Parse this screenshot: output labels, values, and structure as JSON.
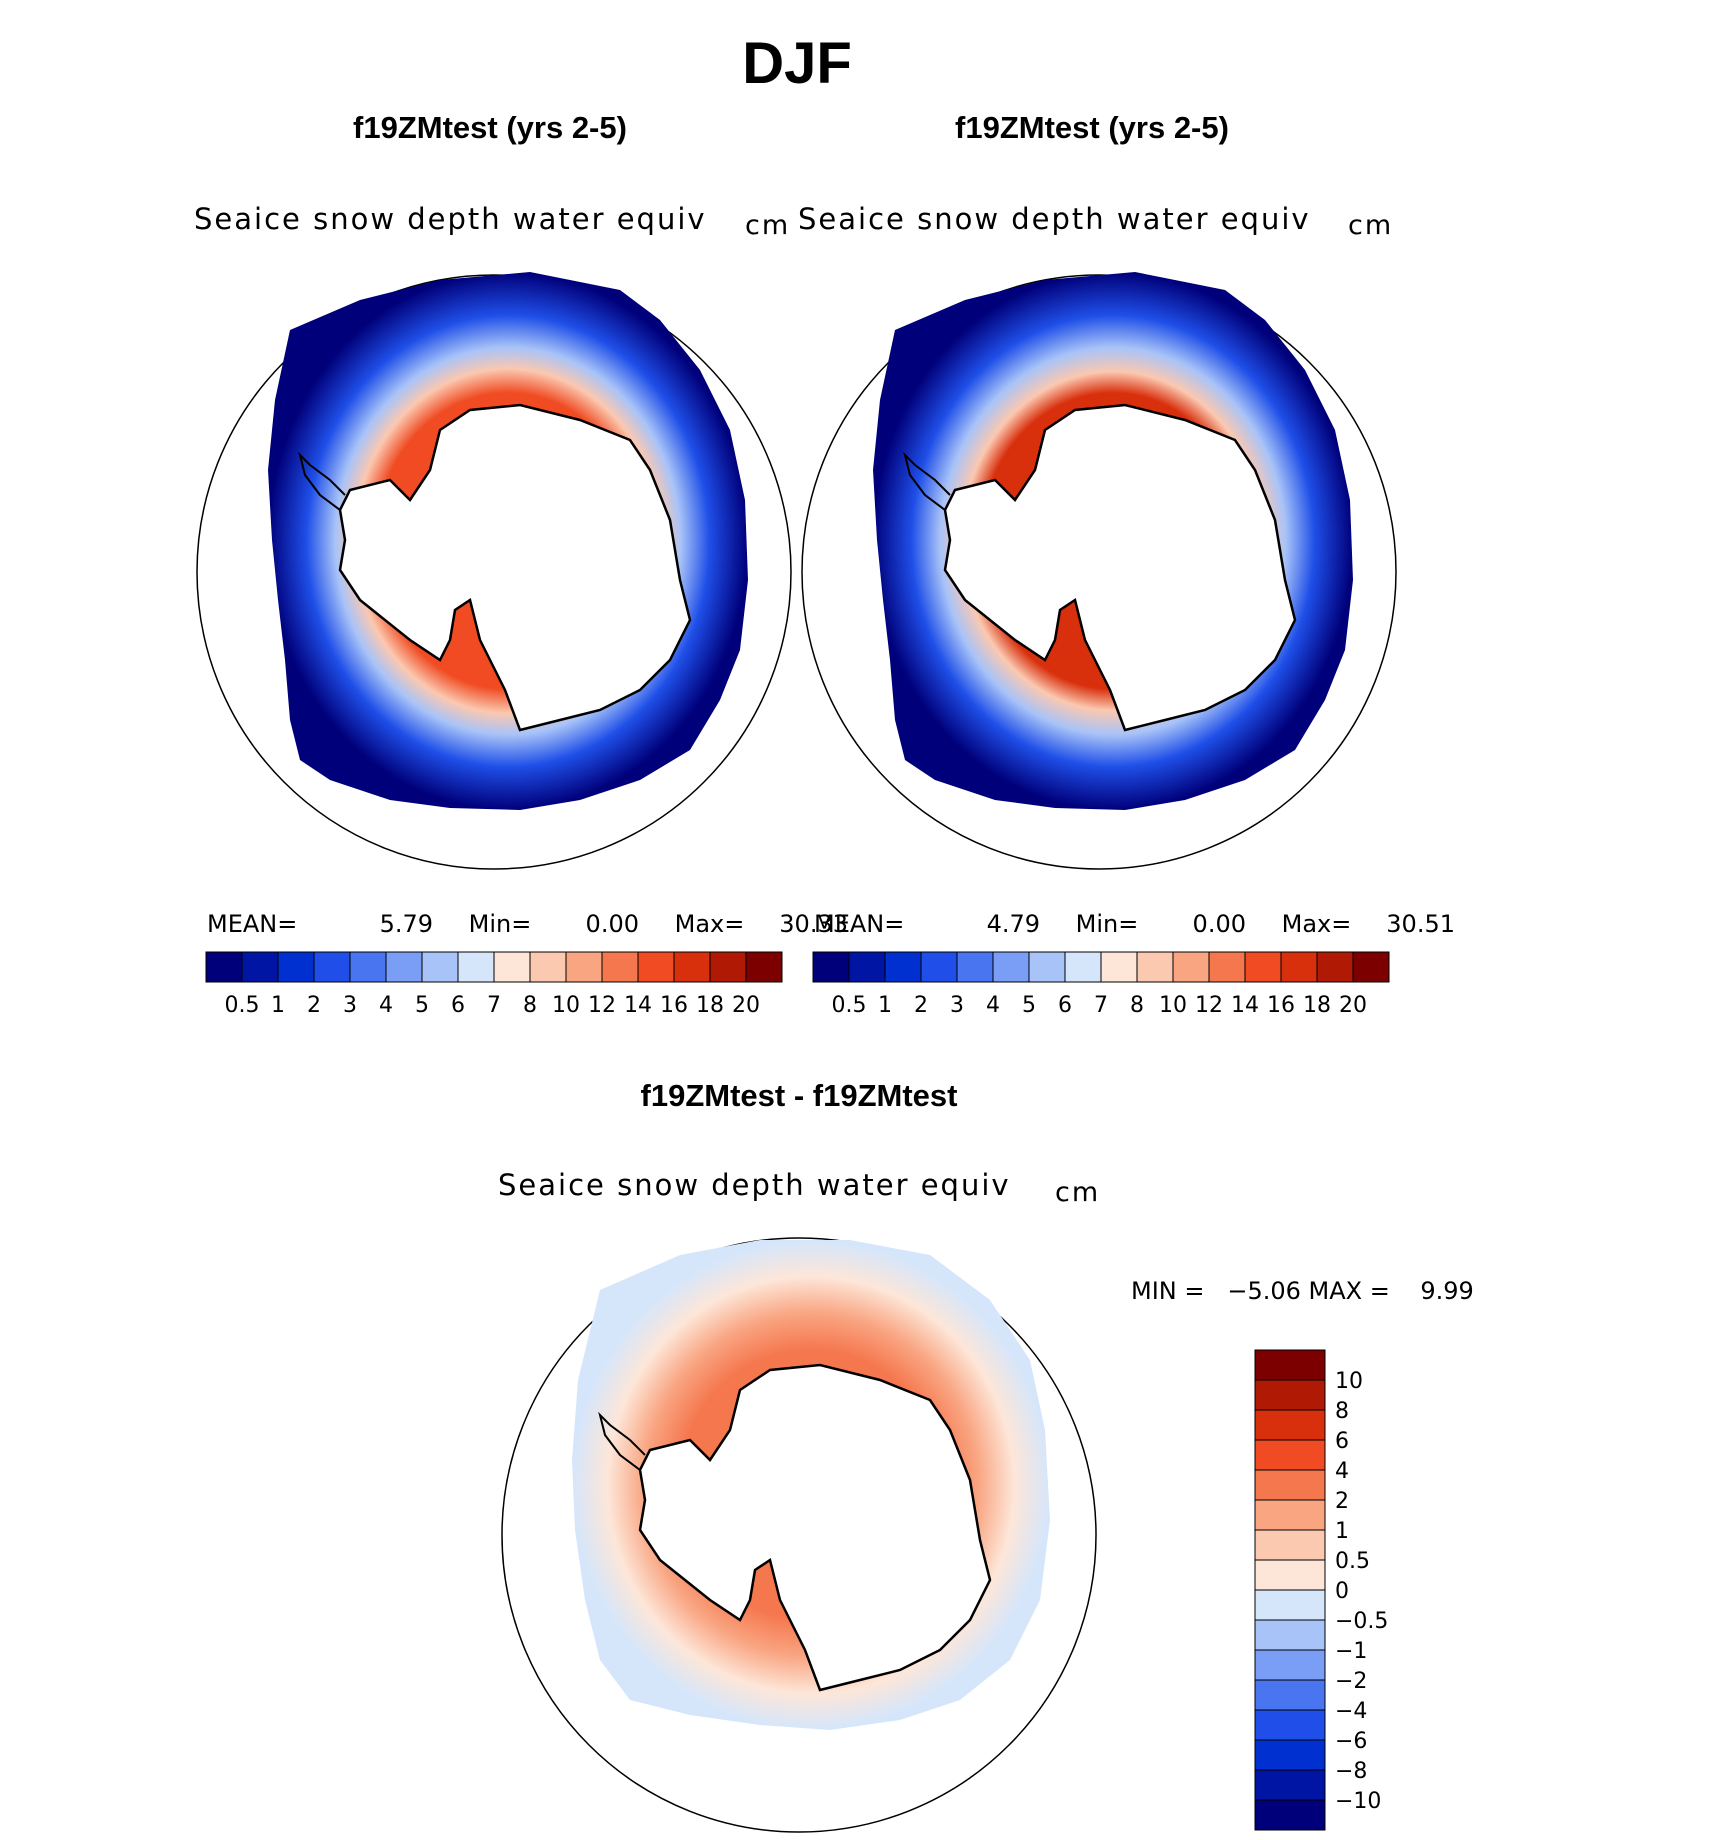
{
  "figure": {
    "title": "DJF"
  },
  "panels": [
    {
      "case_title": "f19ZMtest (yrs 2-5)",
      "variable": "Seaice snow depth water equiv",
      "unit": "cm",
      "stats": {
        "mean_label": "MEAN=",
        "mean": "5.79",
        "min_label": "Min=",
        "min": "0.00",
        "max_label": "Max=",
        "max": "30.33"
      }
    },
    {
      "case_title": "f19ZMtest (yrs 2-5)",
      "variable": "Seaice snow depth water equiv",
      "unit": "cm",
      "stats": {
        "mean_label": "MEAN=",
        "mean": "4.79",
        "min_label": "Min=",
        "min": "0.00",
        "max_label": "Max=",
        "max": "30.51"
      }
    }
  ],
  "diff_panel": {
    "case_title": "f19ZMtest - f19ZMtest",
    "variable": "Seaice snow depth water equiv",
    "unit": "cm",
    "stats_text": "MIN =   −5.06 MAX =    9.99"
  },
  "colorbar_main": {
    "colors": [
      "#00007a",
      "#0015a3",
      "#0030d0",
      "#1f4fe8",
      "#4a75f0",
      "#7a9df5",
      "#a8c3f8",
      "#d5e6fb",
      "#fde6d8",
      "#fbc8b0",
      "#f9a582",
      "#f5774e",
      "#f04b22",
      "#d82f0c",
      "#b01a05",
      "#7d0000"
    ],
    "labels": [
      "0.5",
      "1",
      "2",
      "3",
      "4",
      "5",
      "6",
      "7",
      "8",
      "10",
      "12",
      "14",
      "16",
      "18",
      "20"
    ]
  },
  "colorbar_diff": {
    "colors": [
      "#7d0000",
      "#b01a05",
      "#d82f0c",
      "#f04b22",
      "#f5774e",
      "#f9a582",
      "#fbc8b0",
      "#fde6d8",
      "#d5e6fb",
      "#a8c3f8",
      "#7a9df5",
      "#4a75f0",
      "#1f4fe8",
      "#0030d0",
      "#0015a3",
      "#00007a"
    ],
    "labels": [
      "10",
      "8",
      "6",
      "4",
      "2",
      "1",
      "0.5",
      "0",
      "−0.5",
      "−1",
      "−2",
      "−4",
      "−6",
      "−8",
      "−10"
    ]
  }
}
